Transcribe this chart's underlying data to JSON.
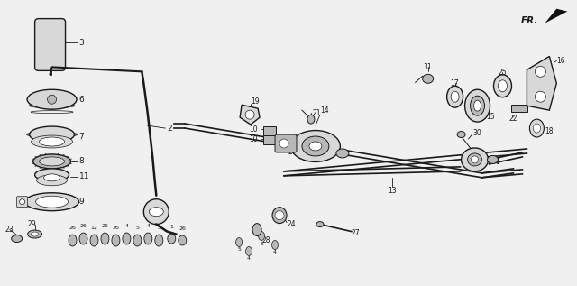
{
  "bg_color": "#f0f0f0",
  "line_color": "#1a1a1a",
  "white": "#ffffff",
  "gray_light": "#d8d8d8",
  "gray_mid": "#b8b8b8",
  "gray_dark": "#888888",
  "black": "#111111"
}
